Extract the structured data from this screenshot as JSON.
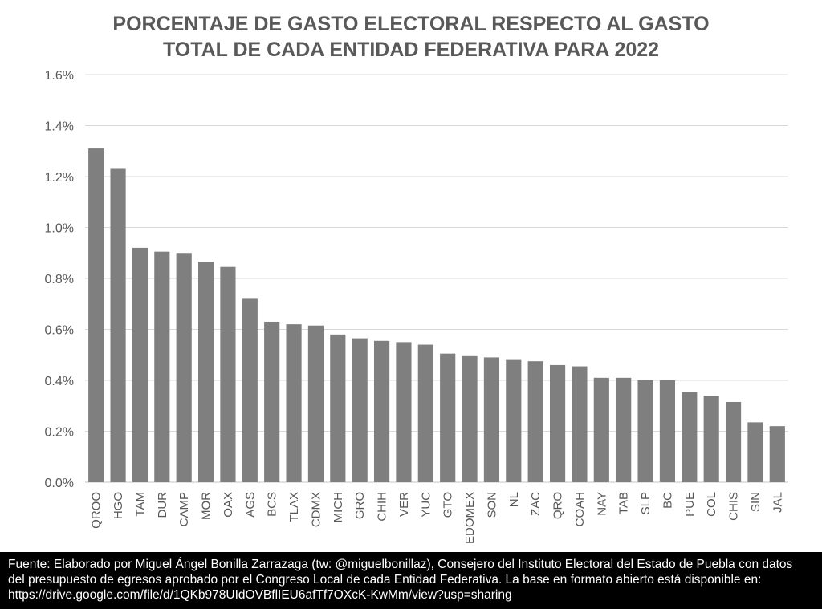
{
  "chart_data": {
    "type": "bar",
    "title": [
      "PORCENTAJE DE GASTO ELECTORAL RESPECTO AL GASTO",
      "TOTAL DE CADA ENTIDAD FEDERATIVA PARA 2022"
    ],
    "xlabel": "",
    "ylabel": "",
    "ylim": [
      0,
      1.6
    ],
    "yticks": [
      0,
      0.2,
      0.4,
      0.6,
      0.8,
      1.0,
      1.2,
      1.4,
      1.6
    ],
    "ytick_labels": [
      "0.0%",
      "0.2%",
      "0.4%",
      "0.6%",
      "0.8%",
      "1.0%",
      "1.2%",
      "1.4%",
      "1.6%"
    ],
    "grid": true,
    "categories": [
      "QROO",
      "HGO",
      "TAM",
      "DUR",
      "CAMP",
      "MOR",
      "OAX",
      "AGS",
      "BCS",
      "TLAX",
      "CDMX",
      "MICH",
      "GRO",
      "CHIH",
      "VER",
      "YUC",
      "GTO",
      "EDOMEX",
      "SON",
      "NL",
      "ZAC",
      "QRO",
      "COAH",
      "NAY",
      "TAB",
      "SLP",
      "BC",
      "PUE",
      "COL",
      "CHIS",
      "SIN",
      "JAL"
    ],
    "values": [
      1.31,
      1.23,
      0.92,
      0.905,
      0.9,
      0.865,
      0.845,
      0.72,
      0.63,
      0.62,
      0.615,
      0.58,
      0.565,
      0.555,
      0.55,
      0.54,
      0.505,
      0.495,
      0.49,
      0.48,
      0.475,
      0.46,
      0.455,
      0.41,
      0.41,
      0.4,
      0.4,
      0.355,
      0.34,
      0.315,
      0.235,
      0.22
    ],
    "bar_color": "#7f7f7f",
    "grid_color": "#d9d9d9"
  },
  "footer": {
    "lines": [
      "Fuente: Elaborado por Miguel Ángel Bonilla Zarrazaga (tw: @miguelbonillaz), Consejero del Instituto Electoral del Estado de Puebla con datos",
      "del presupuesto de egresos aprobado por el Congreso Local de cada Entidad Federativa. La base en formato abierto está disponible en:",
      "https://drive.google.com/file/d/1QKb978UIdOVBflIEU6afTf7OXcK-KwMm/view?usp=sharing"
    ]
  }
}
